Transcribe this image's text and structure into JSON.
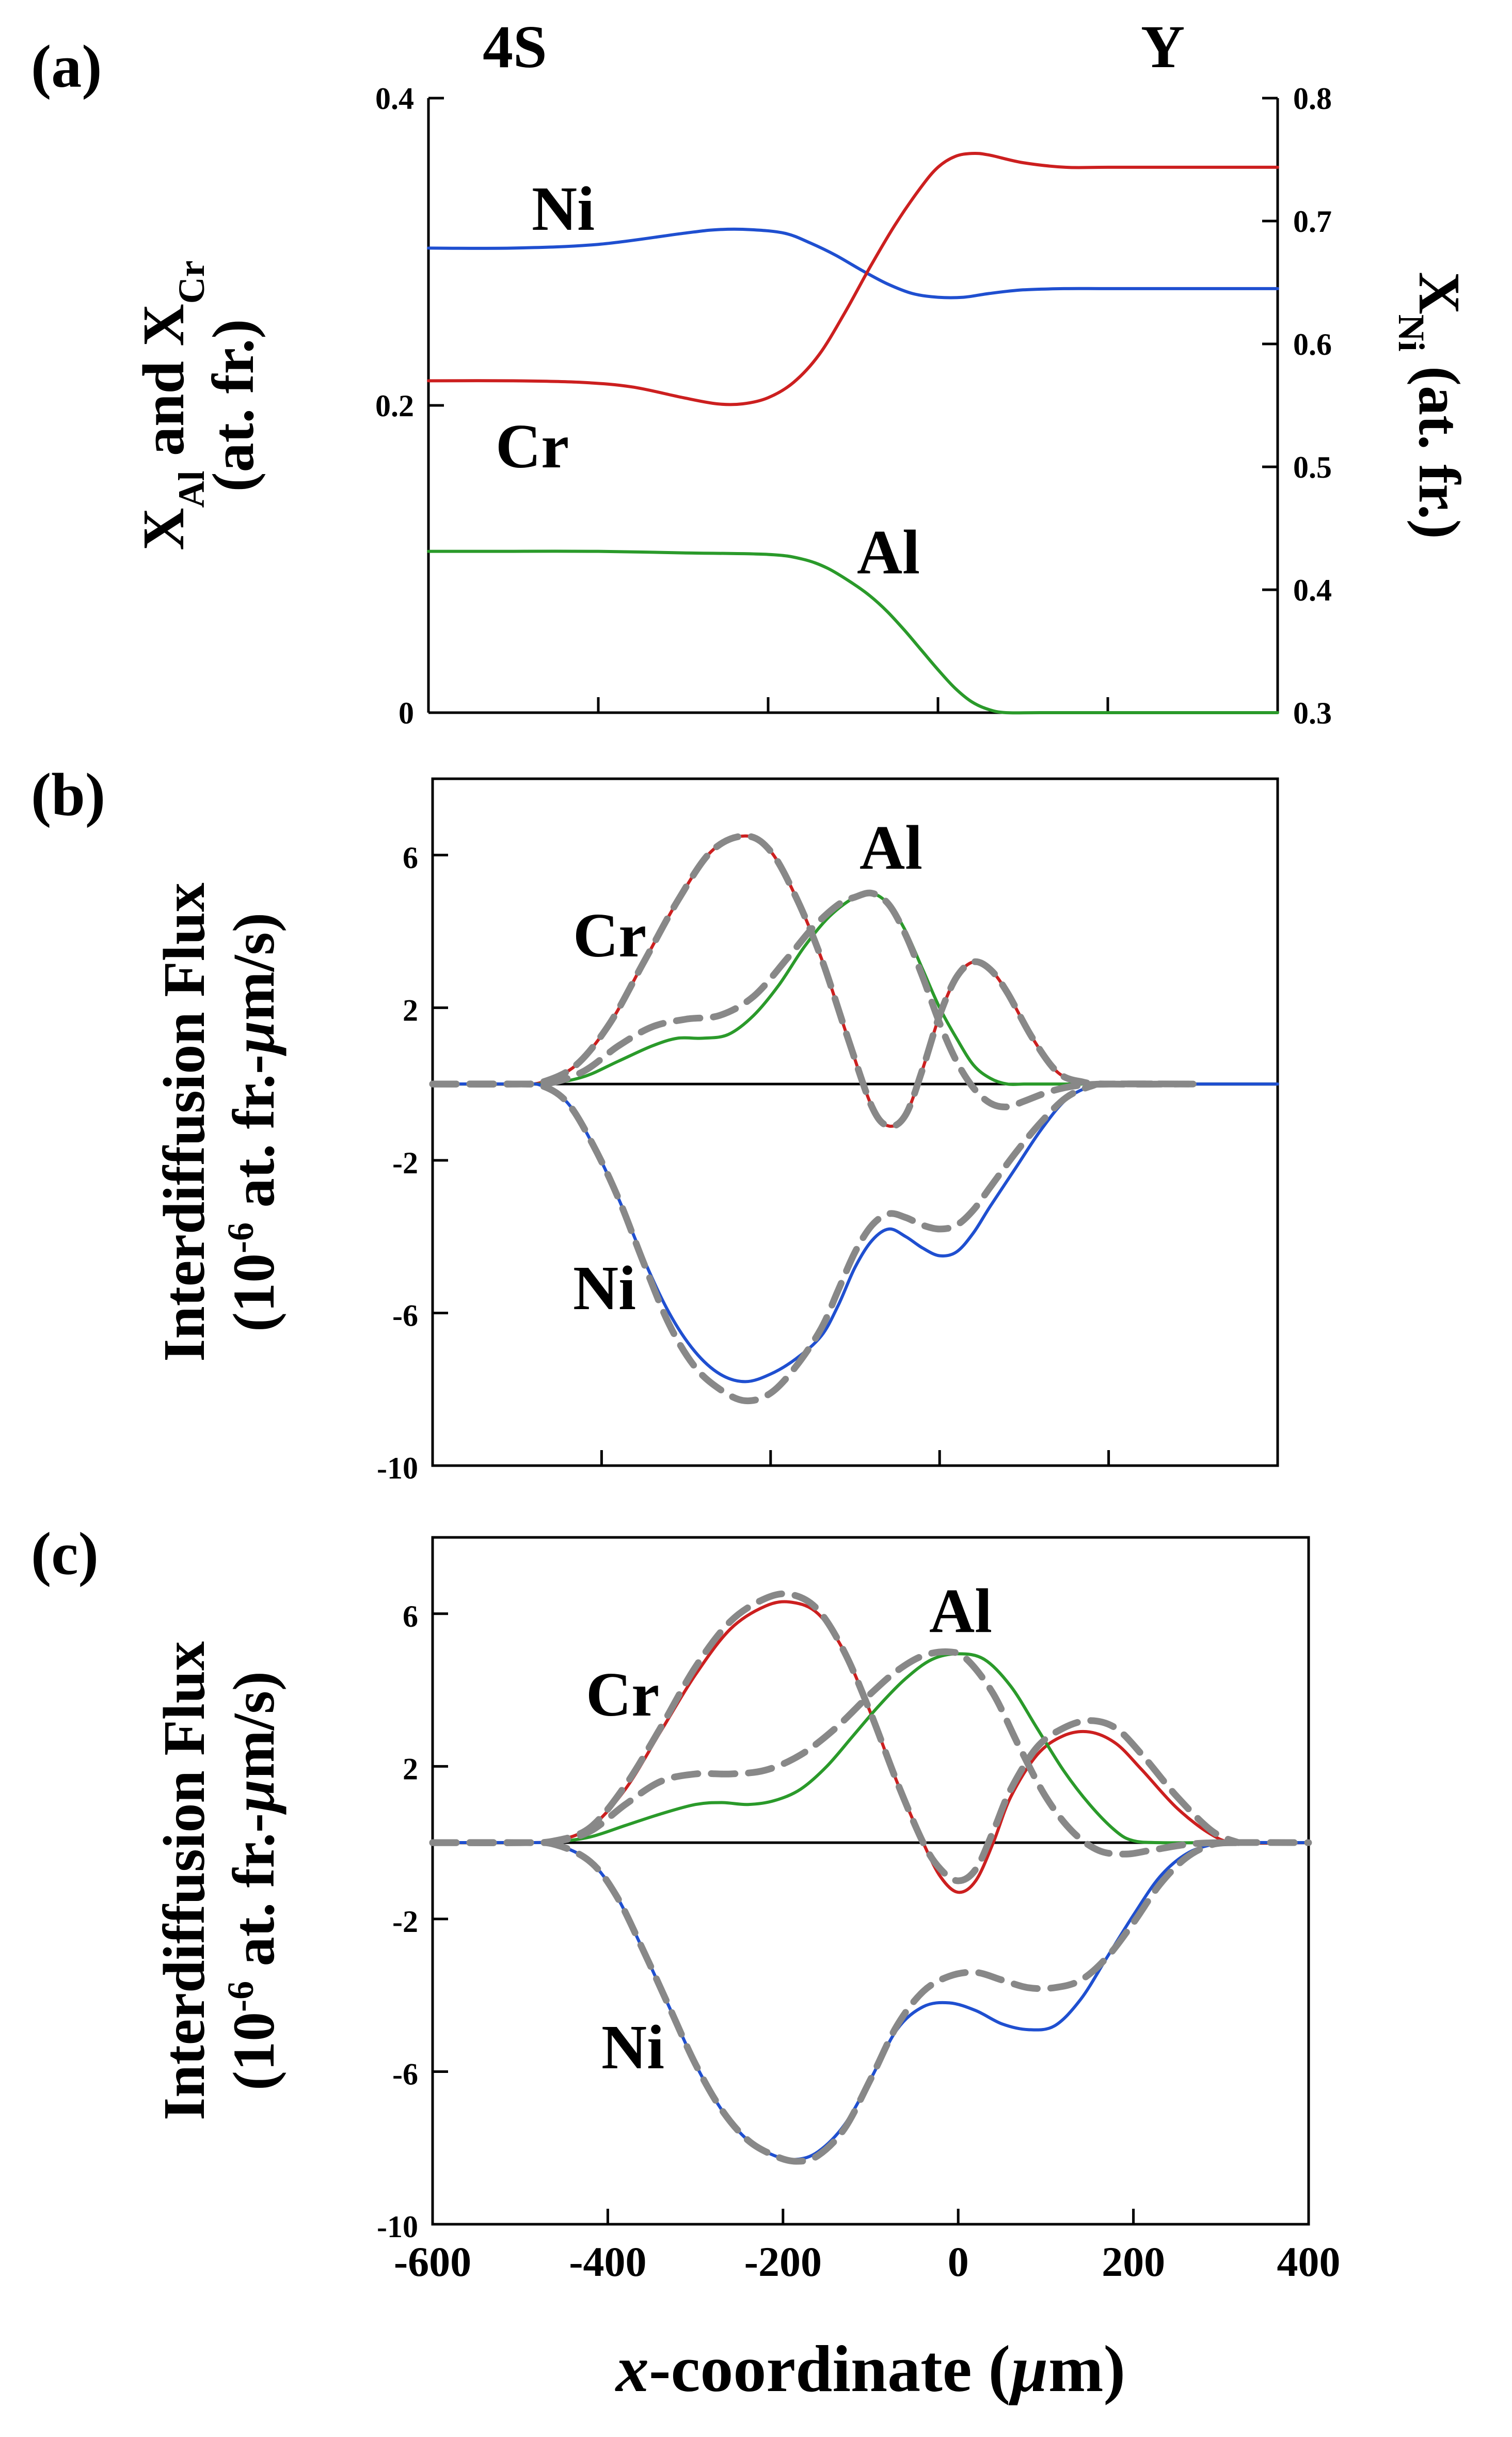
{
  "chart_data": [
    {
      "id": "a",
      "type": "line",
      "panel_label": "(a)",
      "left_header": "4S",
      "right_header": "Y",
      "xlim": [
        -600,
        400
      ],
      "x_ticks": [
        -600,
        -400,
        -200,
        0,
        200,
        400
      ],
      "ylim": [
        0,
        0.4
      ],
      "y_ticks": [
        0,
        0.2,
        0.4
      ],
      "y_tick_labels": [
        "0",
        "0.2",
        "0.4"
      ],
      "ylabel_lines": [
        "X_Al and X_Cr",
        "(at. fr.)"
      ],
      "y2lim": [
        0.3,
        0.8
      ],
      "y2_ticks": [
        0.3,
        0.4,
        0.5,
        0.6,
        0.7,
        0.8
      ],
      "y2_tick_labels": [
        "0.3",
        "0.4",
        "0.5",
        "0.6",
        "0.7",
        "0.8"
      ],
      "y2label": "X_Ni (at. fr.)",
      "series": [
        {
          "name": "Ni",
          "label": "Ni",
          "color": "#1f4fd0",
          "axis": "right",
          "x": [
            -600,
            -500,
            -400,
            -300,
            -260,
            -220,
            -180,
            -150,
            -120,
            -90,
            -60,
            -30,
            0,
            30,
            60,
            100,
            150,
            200,
            300,
            400
          ],
          "y": [
            0.678,
            0.678,
            0.681,
            0.69,
            0.693,
            0.693,
            0.69,
            0.682,
            0.672,
            0.66,
            0.649,
            0.641,
            0.638,
            0.638,
            0.641,
            0.644,
            0.645,
            0.645,
            0.645,
            0.645
          ]
        },
        {
          "name": "Cr",
          "label": "Cr",
          "color": "#cc1f1f",
          "axis": "left",
          "x": [
            -600,
            -500,
            -420,
            -360,
            -300,
            -260,
            -230,
            -200,
            -170,
            -140,
            -110,
            -80,
            -50,
            -20,
            0,
            20,
            40,
            60,
            100,
            150,
            200,
            300,
            400
          ],
          "y": [
            0.216,
            0.216,
            0.215,
            0.212,
            0.205,
            0.201,
            0.201,
            0.205,
            0.215,
            0.233,
            0.26,
            0.29,
            0.318,
            0.342,
            0.355,
            0.362,
            0.364,
            0.363,
            0.358,
            0.355,
            0.355,
            0.355,
            0.355
          ]
        },
        {
          "name": "Al",
          "label": "Al",
          "color": "#2a9a2a",
          "axis": "left",
          "x": [
            -600,
            -500,
            -400,
            -300,
            -200,
            -160,
            -130,
            -100,
            -80,
            -60,
            -40,
            -20,
            0,
            20,
            40,
            60,
            80,
            120,
            200,
            300,
            400
          ],
          "y": [
            0.105,
            0.105,
            0.105,
            0.104,
            0.103,
            0.1,
            0.094,
            0.084,
            0.076,
            0.066,
            0.054,
            0.041,
            0.028,
            0.016,
            0.007,
            0.002,
            0.0,
            0.0,
            0.0,
            0.0,
            0.0
          ]
        }
      ]
    },
    {
      "id": "b",
      "type": "line",
      "panel_label": "(b)",
      "xlim": [
        -600,
        400
      ],
      "x_ticks": [
        -600,
        -400,
        -200,
        0,
        200,
        400
      ],
      "ylim": [
        -10,
        8
      ],
      "y_ticks": [
        -10,
        -6,
        -2,
        2,
        6
      ],
      "y_tick_labels": [
        "-10",
        "-6",
        "-2",
        "2",
        "6"
      ],
      "ylabel_lines": [
        "Interdiffusion Flux",
        "(10^-6 at. fr.-µm/s)"
      ],
      "series": [
        {
          "name": "Cr",
          "label": "Cr",
          "color": "#cc1f1f",
          "dash": false,
          "x": [
            -600,
            -550,
            -500,
            -470,
            -430,
            -390,
            -350,
            -310,
            -270,
            -230,
            -200,
            -170,
            -140,
            -110,
            -80,
            -60,
            -40,
            -20,
            0,
            20,
            40,
            60,
            80,
            110,
            140,
            170,
            200,
            250,
            300,
            400
          ],
          "y": [
            0,
            0,
            0,
            0.05,
            0.5,
            1.6,
            3.2,
            4.8,
            6.1,
            6.5,
            6.1,
            4.9,
            3.3,
            1.3,
            -0.6,
            -1.1,
            -0.8,
            0.4,
            1.8,
            2.8,
            3.2,
            3.0,
            2.4,
            1.2,
            0.3,
            0.05,
            0,
            0,
            0,
            0
          ]
        },
        {
          "name": "Al",
          "label": "Al",
          "color": "#2a9a2a",
          "dash": false,
          "x": [
            -600,
            -500,
            -460,
            -420,
            -380,
            -340,
            -310,
            -280,
            -250,
            -220,
            -190,
            -160,
            -130,
            -100,
            -80,
            -60,
            -40,
            -20,
            0,
            20,
            40,
            60,
            80,
            100,
            120,
            160,
            200,
            300,
            400
          ],
          "y": [
            0,
            0,
            0.02,
            0.2,
            0.6,
            1.0,
            1.2,
            1.2,
            1.3,
            1.8,
            2.6,
            3.6,
            4.4,
            4.9,
            5.0,
            4.7,
            4.0,
            3.0,
            2.0,
            1.2,
            0.5,
            0.15,
            0.0,
            0,
            0,
            0,
            0,
            0,
            0
          ]
        },
        {
          "name": "Ni",
          "label": "Ni",
          "color": "#1f4fd0",
          "dash": false,
          "x": [
            -600,
            -500,
            -470,
            -440,
            -410,
            -380,
            -350,
            -320,
            -290,
            -260,
            -230,
            -200,
            -170,
            -140,
            -120,
            -100,
            -80,
            -60,
            -40,
            -20,
            0,
            20,
            40,
            60,
            90,
            120,
            150,
            180,
            200,
            250,
            300,
            400
          ],
          "y": [
            0,
            0,
            -0.05,
            -0.5,
            -1.6,
            -3.0,
            -4.6,
            -6.0,
            -7.0,
            -7.6,
            -7.8,
            -7.6,
            -7.2,
            -6.6,
            -5.8,
            -4.8,
            -4.1,
            -3.8,
            -4.0,
            -4.3,
            -4.5,
            -4.4,
            -3.9,
            -3.2,
            -2.2,
            -1.2,
            -0.4,
            -0.05,
            0,
            0,
            0,
            0
          ]
        },
        {
          "name": "Cr-fit",
          "color": "#888888",
          "dash": true,
          "x": [
            -600,
            -500,
            -470,
            -430,
            -390,
            -350,
            -310,
            -270,
            -230,
            -200,
            -170,
            -140,
            -110,
            -80,
            -60,
            -40,
            -20,
            0,
            20,
            40,
            60,
            80,
            110,
            140,
            170,
            200,
            300
          ],
          "y": [
            0,
            0,
            0.05,
            0.5,
            1.6,
            3.2,
            4.8,
            6.1,
            6.5,
            6.1,
            4.9,
            3.3,
            1.3,
            -0.6,
            -1.1,
            -0.8,
            0.4,
            1.8,
            2.8,
            3.2,
            3.0,
            2.4,
            1.2,
            0.3,
            0.05,
            0,
            0
          ]
        },
        {
          "name": "Al-fit",
          "color": "#888888",
          "dash": true,
          "x": [
            -600,
            -500,
            -460,
            -420,
            -380,
            -340,
            -300,
            -260,
            -220,
            -180,
            -150,
            -120,
            -100,
            -80,
            -60,
            -40,
            -20,
            0,
            20,
            40,
            60,
            80,
            100,
            130,
            160,
            200,
            300
          ],
          "y": [
            0,
            0,
            0.03,
            0.35,
            1.0,
            1.5,
            1.7,
            1.8,
            2.3,
            3.3,
            4.1,
            4.7,
            4.9,
            5.0,
            4.7,
            3.9,
            2.8,
            1.6,
            0.6,
            -0.1,
            -0.5,
            -0.6,
            -0.45,
            -0.2,
            -0.05,
            0,
            0
          ]
        },
        {
          "name": "Ni-fit",
          "color": "#888888",
          "dash": true,
          "x": [
            -600,
            -500,
            -470,
            -440,
            -410,
            -380,
            -350,
            -320,
            -290,
            -260,
            -230,
            -200,
            -170,
            -140,
            -120,
            -100,
            -80,
            -60,
            -40,
            -20,
            0,
            20,
            40,
            60,
            90,
            120,
            150,
            180,
            200,
            300
          ],
          "y": [
            0,
            0,
            -0.05,
            -0.5,
            -1.6,
            -3.0,
            -4.7,
            -6.3,
            -7.4,
            -8.0,
            -8.3,
            -8.1,
            -7.4,
            -6.4,
            -5.4,
            -4.4,
            -3.7,
            -3.4,
            -3.5,
            -3.7,
            -3.8,
            -3.7,
            -3.3,
            -2.7,
            -1.8,
            -1.0,
            -0.35,
            -0.05,
            0,
            0
          ]
        }
      ],
      "annotations": [
        "Cr",
        "Al",
        "Ni"
      ]
    },
    {
      "id": "c",
      "type": "line",
      "panel_label": "(c)",
      "xlim": [
        -600,
        400
      ],
      "x_ticks": [
        -600,
        -400,
        -200,
        0,
        200,
        400
      ],
      "x_tick_labels": [
        "-600",
        "-400",
        "-200",
        "0",
        "200",
        "400"
      ],
      "xlabel_italic": "x",
      "xlabel_rest": "-coordinate (",
      "xlabel_unit_italic": "µ",
      "xlabel_end": "m)",
      "ylim": [
        -10,
        8
      ],
      "y_ticks": [
        -10,
        -6,
        -2,
        2,
        6
      ],
      "y_tick_labels": [
        "-10",
        "-6",
        "-2",
        "2",
        "6"
      ],
      "ylabel_lines": [
        "Interdiffusion Flux",
        "(10^-6 at. fr.-µm/s)"
      ],
      "series": [
        {
          "name": "Cr",
          "label": "Cr",
          "color": "#cc1f1f",
          "dash": false,
          "x": [
            -600,
            -500,
            -460,
            -420,
            -380,
            -340,
            -300,
            -260,
            -220,
            -190,
            -160,
            -130,
            -100,
            -70,
            -40,
            -20,
            0,
            20,
            40,
            60,
            90,
            120,
            150,
            180,
            210,
            250,
            290,
            320,
            400
          ],
          "y": [
            0,
            0,
            0.05,
            0.4,
            1.4,
            2.9,
            4.4,
            5.6,
            6.2,
            6.3,
            6.0,
            5.0,
            3.4,
            1.6,
            0.0,
            -0.9,
            -1.3,
            -1.0,
            0.0,
            1.2,
            2.3,
            2.8,
            2.9,
            2.6,
            1.9,
            0.9,
            0.2,
            0,
            0
          ]
        },
        {
          "name": "Al",
          "label": "Al",
          "color": "#2a9a2a",
          "dash": false,
          "x": [
            -600,
            -500,
            -460,
            -420,
            -380,
            -340,
            -300,
            -270,
            -240,
            -210,
            -180,
            -150,
            -120,
            -90,
            -60,
            -30,
            0,
            30,
            60,
            90,
            120,
            150,
            180,
            200,
            230,
            300,
            400
          ],
          "y": [
            0,
            0,
            0.02,
            0.15,
            0.45,
            0.75,
            1.0,
            1.05,
            1.0,
            1.1,
            1.4,
            2.0,
            2.8,
            3.6,
            4.3,
            4.8,
            4.95,
            4.8,
            4.1,
            3.0,
            1.9,
            1.0,
            0.3,
            0.05,
            0,
            0,
            0
          ]
        },
        {
          "name": "Ni",
          "label": "Ni",
          "color": "#1f4fd0",
          "dash": false,
          "x": [
            -600,
            -500,
            -460,
            -420,
            -390,
            -360,
            -330,
            -300,
            -270,
            -240,
            -210,
            -185,
            -160,
            -130,
            -100,
            -70,
            -40,
            -10,
            20,
            50,
            80,
            110,
            140,
            170,
            200,
            230,
            260,
            290,
            320,
            400
          ],
          "y": [
            0,
            0,
            -0.05,
            -0.5,
            -1.4,
            -2.8,
            -4.3,
            -5.8,
            -7.0,
            -7.8,
            -8.2,
            -8.3,
            -8.1,
            -7.4,
            -6.2,
            -4.9,
            -4.3,
            -4.2,
            -4.4,
            -4.75,
            -4.9,
            -4.8,
            -4.1,
            -3.0,
            -1.9,
            -0.9,
            -0.3,
            -0.05,
            0,
            0
          ]
        },
        {
          "name": "Cr-fit",
          "color": "#888888",
          "dash": true,
          "x": [
            -600,
            -500,
            -460,
            -420,
            -380,
            -340,
            -300,
            -260,
            -220,
            -190,
            -160,
            -130,
            -100,
            -70,
            -40,
            -20,
            0,
            20,
            40,
            60,
            90,
            120,
            150,
            180,
            210,
            250,
            290,
            320
          ],
          "y": [
            0,
            0,
            0.05,
            0.4,
            1.5,
            3.0,
            4.6,
            5.8,
            6.4,
            6.5,
            6.1,
            5.0,
            3.4,
            1.6,
            0.0,
            -0.7,
            -1.0,
            -0.7,
            0.3,
            1.4,
            2.5,
            3.0,
            3.2,
            3.0,
            2.3,
            1.2,
            0.3,
            0
          ]
        },
        {
          "name": "Al-fit",
          "color": "#888888",
          "dash": true,
          "x": [
            -600,
            -500,
            -460,
            -420,
            -380,
            -340,
            -300,
            -260,
            -220,
            -180,
            -140,
            -100,
            -70,
            -40,
            -10,
            10,
            40,
            70,
            100,
            130,
            160,
            190,
            220,
            260,
            300,
            400
          ],
          "y": [
            0,
            0,
            0.03,
            0.3,
            1.0,
            1.6,
            1.8,
            1.8,
            1.9,
            2.3,
            3.0,
            3.9,
            4.5,
            4.9,
            5.0,
            4.8,
            3.9,
            2.5,
            1.2,
            0.3,
            -0.2,
            -0.3,
            -0.2,
            -0.05,
            0,
            0
          ]
        },
        {
          "name": "Ni-fit",
          "color": "#888888",
          "dash": true,
          "x": [
            -600,
            -500,
            -460,
            -420,
            -390,
            -360,
            -330,
            -300,
            -270,
            -240,
            -210,
            -185,
            -160,
            -130,
            -100,
            -70,
            -40,
            -10,
            20,
            50,
            80,
            110,
            140,
            170,
            200,
            230,
            260,
            290,
            320
          ],
          "y": [
            0,
            0,
            -0.05,
            -0.5,
            -1.4,
            -2.8,
            -4.3,
            -5.8,
            -7.0,
            -7.8,
            -8.2,
            -8.35,
            -8.2,
            -7.5,
            -6.2,
            -4.8,
            -3.9,
            -3.5,
            -3.4,
            -3.6,
            -3.8,
            -3.8,
            -3.6,
            -3.0,
            -2.1,
            -1.1,
            -0.4,
            -0.05,
            0
          ]
        }
      ],
      "annotations": [
        "Cr",
        "Al",
        "Ni"
      ]
    }
  ]
}
